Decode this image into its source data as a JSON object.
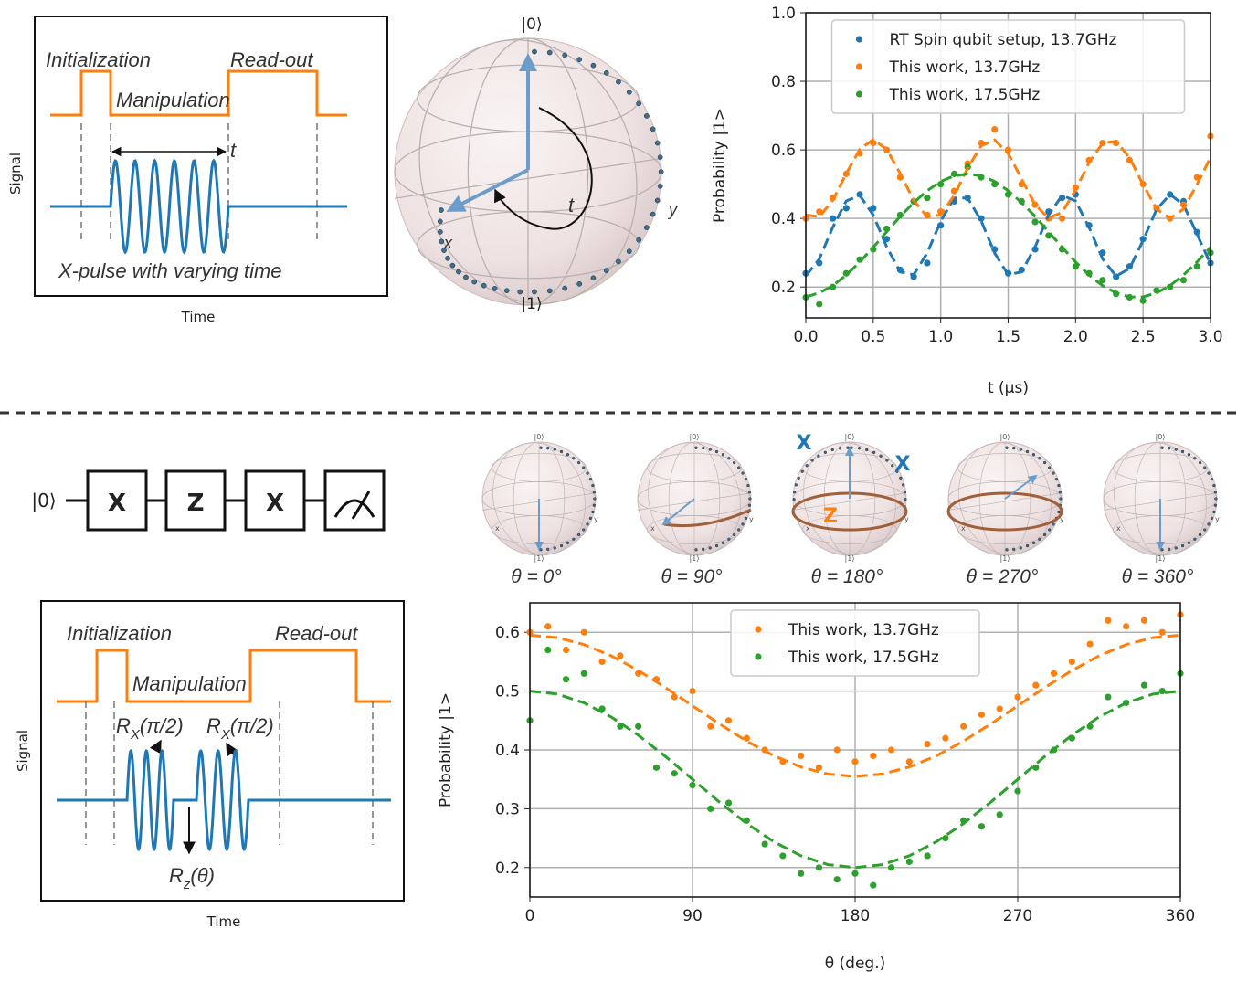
{
  "chart_data": [
    {
      "type": "scatter",
      "xlabel": "t (μs)",
      "ylabel": "Probability |1>",
      "xlim": [
        0,
        3
      ],
      "ylim": [
        0.11,
        1.0
      ],
      "xticks": [
        {
          "value": 0,
          "label": "0.0"
        },
        0.5,
        {
          "value": 1,
          "label": "1.0"
        },
        1.5,
        {
          "value": 2,
          "label": "2.0"
        },
        2.5,
        {
          "value": 3,
          "label": "3.0"
        }
      ],
      "yticks": [
        0.2,
        0.4,
        0.6,
        0.8,
        {
          "value": 1,
          "label": "1.0"
        }
      ],
      "grid": true,
      "legend": "upper center",
      "series": [
        {
          "name": "RT Spin qubit setup, 13.7GHz",
          "color": "#1f77b4",
          "x": [
            0,
            0.1,
            0.2,
            0.3,
            0.4,
            0.5,
            0.6,
            0.7,
            0.8,
            0.9,
            1.0,
            1.1,
            1.2,
            1.3,
            1.4,
            1.5,
            1.6,
            1.7,
            1.8,
            1.9,
            2.0,
            2.1,
            2.2,
            2.3,
            2.4,
            2.5,
            2.6,
            2.7,
            2.8,
            2.9,
            3.0
          ],
          "values": [
            0.24,
            0.27,
            0.4,
            0.43,
            0.47,
            0.43,
            0.34,
            0.25,
            0.23,
            0.27,
            0.38,
            0.45,
            0.46,
            0.4,
            0.31,
            0.24,
            0.25,
            0.31,
            0.42,
            0.46,
            0.47,
            0.38,
            0.3,
            0.23,
            0.26,
            0.34,
            0.43,
            0.47,
            0.45,
            0.36,
            0.27
          ]
        },
        {
          "name": "This work, 13.7GHz",
          "color": "#ff7f0e",
          "x": [
            0,
            0.1,
            0.2,
            0.3,
            0.4,
            0.5,
            0.6,
            0.7,
            0.8,
            0.9,
            1.0,
            1.1,
            1.2,
            1.3,
            1.4,
            1.5,
            1.6,
            1.7,
            1.8,
            1.9,
            2.0,
            2.1,
            2.2,
            2.3,
            2.4,
            2.5,
            2.6,
            2.7,
            2.8,
            2.9,
            3.0
          ],
          "values": [
            0.4,
            0.42,
            0.46,
            0.53,
            0.59,
            0.62,
            0.6,
            0.52,
            0.45,
            0.41,
            0.42,
            0.48,
            0.56,
            0.62,
            0.66,
            0.6,
            0.5,
            0.44,
            0.4,
            0.4,
            0.49,
            0.57,
            0.62,
            0.62,
            0.57,
            0.5,
            0.43,
            0.4,
            0.44,
            0.52,
            0.64
          ]
        },
        {
          "name": "This work, 17.5GHz",
          "color": "#2ca02c",
          "x": [
            0,
            0.1,
            0.2,
            0.3,
            0.4,
            0.5,
            0.6,
            0.7,
            0.8,
            0.9,
            1.0,
            1.1,
            1.2,
            1.3,
            1.4,
            1.5,
            1.6,
            1.7,
            1.8,
            1.9,
            2.0,
            2.1,
            2.2,
            2.3,
            2.4,
            2.5,
            2.6,
            2.7,
            2.8,
            2.9,
            3.0
          ],
          "values": [
            0.17,
            0.15,
            0.2,
            0.24,
            0.28,
            0.31,
            0.37,
            0.41,
            0.45,
            0.46,
            0.5,
            0.53,
            0.55,
            0.52,
            0.5,
            0.47,
            0.45,
            0.39,
            0.35,
            0.31,
            0.26,
            0.24,
            0.22,
            0.18,
            0.17,
            0.16,
            0.19,
            0.2,
            0.22,
            0.26,
            0.3
          ]
        },
        {
          "color": "#1f77b4",
          "line_style": "dashed",
          "x": [
            0,
            0.1,
            0.2,
            0.3,
            0.4,
            0.5,
            0.6,
            0.7,
            0.8,
            0.9,
            1.0,
            1.1,
            1.2,
            1.3,
            1.4,
            1.5,
            1.6,
            1.7,
            1.8,
            1.9,
            2.0,
            2.1,
            2.2,
            2.3,
            2.4,
            2.5,
            2.6,
            2.7,
            2.8,
            2.9,
            3.0
          ],
          "values": [
            0.232,
            0.282,
            0.374,
            0.451,
            0.467,
            0.41,
            0.317,
            0.244,
            0.236,
            0.299,
            0.392,
            0.46,
            0.46,
            0.393,
            0.299,
            0.236,
            0.244,
            0.317,
            0.41,
            0.467,
            0.451,
            0.374,
            0.282,
            0.232,
            0.254,
            0.336,
            0.426,
            0.47,
            0.44,
            0.355,
            0.267
          ]
        },
        {
          "color": "#ff7f0e",
          "line_style": "dashed",
          "x": [
            0,
            0.1,
            0.2,
            0.3,
            0.4,
            0.5,
            0.6,
            0.7,
            0.8,
            0.9,
            1.0,
            1.1,
            1.2,
            1.3,
            1.4,
            1.5,
            1.6,
            1.7,
            1.8,
            1.9,
            2.0,
            2.1,
            2.2,
            2.3,
            2.4,
            2.5,
            2.6,
            2.7,
            2.8,
            2.9,
            3.0
          ],
          "values": [
            0.41,
            0.405,
            0.453,
            0.531,
            0.602,
            0.63,
            0.602,
            0.531,
            0.453,
            0.405,
            0.41,
            0.467,
            0.547,
            0.612,
            0.629,
            0.59,
            0.515,
            0.44,
            0.401,
            0.418,
            0.483,
            0.563,
            0.62,
            0.625,
            0.577,
            0.499,
            0.428,
            0.4,
            0.428,
            0.499,
            0.578
          ]
        },
        {
          "color": "#2ca02c",
          "line_style": "dashed",
          "x": [
            0,
            0.1,
            0.2,
            0.3,
            0.4,
            0.5,
            0.6,
            0.7,
            0.8,
            0.9,
            1.0,
            1.1,
            1.2,
            1.3,
            1.4,
            1.5,
            1.6,
            1.7,
            1.8,
            1.9,
            2.0,
            2.1,
            2.2,
            2.3,
            2.4,
            2.5,
            2.6,
            2.7,
            2.8,
            2.9,
            3.0
          ],
          "values": [
            0.171,
            0.183,
            0.204,
            0.235,
            0.273,
            0.316,
            0.361,
            0.406,
            0.446,
            0.481,
            0.508,
            0.524,
            0.53,
            0.524,
            0.508,
            0.481,
            0.446,
            0.406,
            0.361,
            0.316,
            0.273,
            0.235,
            0.204,
            0.183,
            0.171,
            0.171,
            0.183,
            0.204,
            0.235,
            0.273,
            0.316
          ]
        }
      ]
    },
    {
      "type": "scatter",
      "xlabel": "θ (deg.)",
      "ylabel": "Probability |1>",
      "xlim": [
        0,
        360
      ],
      "ylim": [
        0.15,
        0.65
      ],
      "xticks": [
        0,
        90,
        180,
        270,
        360
      ],
      "yticks": [
        0.2,
        0.3,
        0.4,
        0.5,
        0.6
      ],
      "grid": true,
      "legend": "upper center",
      "series": [
        {
          "name": "This work, 13.7GHz",
          "color": "#ff7f0e",
          "x": [
            0,
            10,
            20,
            30,
            40,
            50,
            60,
            70,
            80,
            90,
            100,
            110,
            120,
            130,
            140,
            150,
            160,
            170,
            180,
            190,
            200,
            210,
            220,
            230,
            240,
            250,
            260,
            270,
            280,
            290,
            300,
            310,
            320,
            330,
            340,
            350,
            360
          ],
          "values": [
            0.6,
            0.61,
            0.57,
            0.6,
            0.55,
            0.56,
            0.53,
            0.52,
            0.49,
            0.5,
            0.44,
            0.45,
            0.42,
            0.4,
            0.38,
            0.39,
            0.37,
            0.4,
            0.38,
            0.39,
            0.4,
            0.38,
            0.41,
            0.42,
            0.44,
            0.46,
            0.47,
            0.49,
            0.51,
            0.53,
            0.55,
            0.58,
            0.62,
            0.61,
            0.62,
            0.6,
            0.63
          ]
        },
        {
          "name": "This work, 17.5GHz",
          "color": "#2ca02c",
          "x": [
            0,
            10,
            20,
            30,
            40,
            50,
            60,
            70,
            80,
            90,
            100,
            110,
            120,
            130,
            140,
            150,
            160,
            170,
            180,
            190,
            200,
            210,
            220,
            230,
            240,
            250,
            260,
            270,
            280,
            290,
            300,
            310,
            320,
            330,
            340,
            350,
            360
          ],
          "values": [
            0.45,
            0.57,
            0.52,
            0.53,
            0.47,
            0.44,
            0.44,
            0.37,
            0.36,
            0.34,
            0.3,
            0.31,
            0.28,
            0.24,
            0.22,
            0.19,
            0.2,
            0.18,
            0.19,
            0.17,
            0.2,
            0.21,
            0.22,
            0.25,
            0.28,
            0.27,
            0.29,
            0.33,
            0.37,
            0.4,
            0.42,
            0.44,
            0.49,
            0.48,
            0.51,
            0.5,
            0.53
          ]
        },
        {
          "color": "#ff7f0e",
          "line_style": "dashed",
          "x": [
            0,
            15,
            30,
            45,
            60,
            75,
            90,
            105,
            120,
            135,
            150,
            165,
            180,
            195,
            210,
            225,
            240,
            255,
            270,
            285,
            300,
            315,
            330,
            345,
            360
          ],
          "values": [
            0.595,
            0.591,
            0.579,
            0.56,
            0.535,
            0.506,
            0.475,
            0.444,
            0.415,
            0.39,
            0.371,
            0.359,
            0.355,
            0.359,
            0.371,
            0.39,
            0.415,
            0.444,
            0.475,
            0.506,
            0.535,
            0.56,
            0.579,
            0.591,
            0.595
          ]
        },
        {
          "color": "#2ca02c",
          "line_style": "dashed",
          "x": [
            0,
            15,
            30,
            45,
            60,
            75,
            90,
            105,
            120,
            135,
            150,
            165,
            180,
            195,
            210,
            225,
            240,
            255,
            270,
            285,
            300,
            315,
            330,
            345,
            360
          ],
          "values": [
            0.5,
            0.495,
            0.48,
            0.456,
            0.425,
            0.389,
            0.35,
            0.311,
            0.275,
            0.244,
            0.22,
            0.205,
            0.2,
            0.205,
            0.22,
            0.244,
            0.275,
            0.311,
            0.35,
            0.389,
            0.425,
            0.456,
            0.48,
            0.495,
            0.5
          ]
        }
      ]
    }
  ],
  "top_pulse_diagram": {
    "initialization": "Initialization",
    "readout": "Read-out",
    "manipulation": "Manipulation",
    "t": "t",
    "pulse_caption": "X-pulse with varying time",
    "ylabel": "Signal",
    "xlabel": "Time"
  },
  "bloch_sphere": {
    "zero": "|0⟩",
    "one": "|1⟩",
    "x": "x",
    "y": "y",
    "t": "t"
  },
  "circuit": {
    "input": "|0⟩",
    "gates": [
      "X",
      "Z",
      "X"
    ]
  },
  "bloch_sequence": {
    "small_labels": {
      "zero": "|0⟩",
      "one": "|1⟩",
      "x": "x",
      "y": "y"
    },
    "annotations": {
      "x_left": "X",
      "x_right": "X",
      "z": "Z"
    },
    "labels": [
      "θ = 0°",
      "θ = 90°",
      "θ = 180°",
      "θ = 270°",
      "θ = 360°"
    ]
  },
  "bottom_pulse_diagram": {
    "initialization": "Initialization",
    "readout": "Read-out",
    "manipulation": "Manipulation",
    "rx_left": {
      "symbol": "R",
      "subscript": "X",
      "argument": "(π/2)"
    },
    "rx_right": {
      "symbol": "R",
      "subscript": "X",
      "argument": "(π/2)"
    },
    "rz": {
      "symbol": "R",
      "subscript": "z",
      "argument": "(θ)"
    },
    "ylabel": "Signal",
    "xlabel": "Time"
  }
}
